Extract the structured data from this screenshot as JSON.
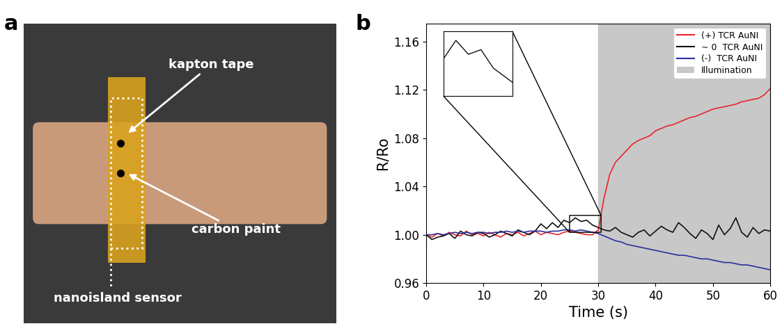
{
  "figure": {
    "panel_labels": [
      "a",
      "b"
    ]
  },
  "photo": {
    "labels": [
      "kapton tape",
      "carbon paint",
      "nanoisland sensor"
    ]
  },
  "chart_data": {
    "type": "line",
    "x_label": "Time (s)",
    "y_label": "R/Ro",
    "x": [
      0,
      1,
      2,
      3,
      4,
      5,
      6,
      7,
      8,
      9,
      10,
      11,
      12,
      13,
      14,
      15,
      16,
      17,
      18,
      19,
      20,
      21,
      22,
      23,
      24,
      25,
      26,
      27,
      28,
      29,
      30,
      31,
      32,
      33,
      34,
      35,
      36,
      37,
      38,
      39,
      40,
      41,
      42,
      43,
      44,
      45,
      46,
      47,
      48,
      49,
      50,
      51,
      52,
      53,
      54,
      55,
      56,
      57,
      58,
      59,
      60
    ],
    "series": [
      {
        "name": "(+) TCR AuNI",
        "color": "#e8262a",
        "values": [
          1.0,
          0.998,
          1.001,
          0.999,
          1.002,
          1.0,
          0.999,
          1.003,
          1.0,
          1.001,
          0.999,
          1.002,
          1.0,
          0.998,
          1.001,
          1.0,
          1.002,
          0.999,
          1.001,
          1.003,
          1.0,
          1.002,
          1.001,
          1.0,
          1.002,
          1.003,
          1.002,
          1.001,
          1.0,
          1.0,
          1.004,
          1.03,
          1.05,
          1.06,
          1.065,
          1.07,
          1.075,
          1.078,
          1.08,
          1.082,
          1.086,
          1.088,
          1.09,
          1.091,
          1.093,
          1.095,
          1.097,
          1.098,
          1.1,
          1.102,
          1.104,
          1.105,
          1.106,
          1.107,
          1.108,
          1.11,
          1.111,
          1.112,
          1.113,
          1.116,
          1.121
        ]
      },
      {
        "name": "~ 0  TCR AuNI",
        "color": "#111111",
        "values": [
          1.0,
          0.996,
          0.998,
          0.999,
          1.001,
          0.997,
          1.003,
          1.0,
          0.999,
          1.002,
          1.001,
          0.998,
          1.0,
          1.003,
          1.001,
          0.999,
          1.004,
          1.002,
          1.0,
          1.003,
          1.009,
          1.005,
          1.01,
          1.006,
          1.012,
          1.01,
          1.014,
          1.011,
          1.012,
          1.008,
          1.006,
          1.004,
          1.003,
          1.006,
          1.002,
          1.0,
          0.998,
          1.002,
          1.004,
          0.999,
          1.003,
          1.007,
          1.004,
          1.002,
          1.01,
          1.006,
          1.001,
          0.997,
          1.004,
          1.001,
          0.996,
          1.008,
          1.0,
          1.005,
          1.014,
          1.002,
          0.998,
          1.006,
          1.001,
          1.004,
          1.003
        ]
      },
      {
        "name": "(-)  TCR AuNI",
        "color": "#2b2f9a",
        "values": [
          1.0,
          1.0,
          1.001,
          1.0,
          1.001,
          1.002,
          1.001,
          1.002,
          1.001,
          1.002,
          1.002,
          1.001,
          1.002,
          1.002,
          1.003,
          1.002,
          1.003,
          1.002,
          1.003,
          1.003,
          1.003,
          1.002,
          1.003,
          1.003,
          1.004,
          1.004,
          1.003,
          1.004,
          1.003,
          1.002,
          1.001,
          0.999,
          0.997,
          0.995,
          0.994,
          0.992,
          0.991,
          0.99,
          0.989,
          0.988,
          0.987,
          0.986,
          0.985,
          0.984,
          0.983,
          0.983,
          0.982,
          0.981,
          0.98,
          0.98,
          0.979,
          0.978,
          0.977,
          0.977,
          0.976,
          0.975,
          0.975,
          0.974,
          0.973,
          0.972,
          0.971
        ]
      }
    ],
    "illumination": {
      "label": "Illumination",
      "x": [
        30,
        60
      ],
      "color": "#c8c8c8"
    },
    "zoom": {
      "series": "~ 0  TCR AuNI",
      "x": [
        25,
        30.5
      ],
      "y": [
        1.002,
        1.016
      ]
    },
    "xlim": [
      0,
      60
    ],
    "xticks": [
      0,
      10,
      20,
      30,
      40,
      50,
      60
    ],
    "ylim": [
      0.96,
      1.175
    ],
    "yticks": [
      0.96,
      {
        "value": 1.0,
        "label": "1.00"
      },
      1.04,
      1.08,
      1.12,
      1.16
    ],
    "legend": "upper right",
    "grid": false
  }
}
